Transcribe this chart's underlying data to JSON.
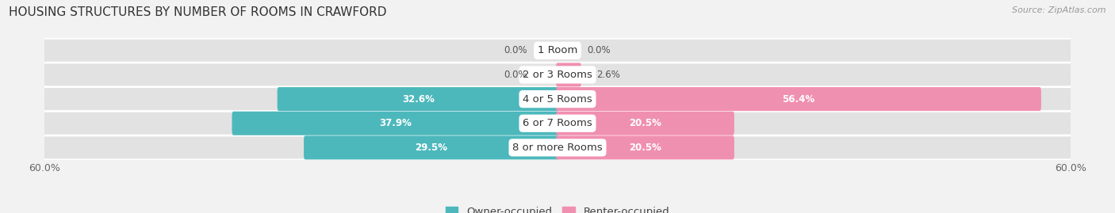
{
  "title": "HOUSING STRUCTURES BY NUMBER OF ROOMS IN CRAWFORD",
  "source": "Source: ZipAtlas.com",
  "categories": [
    "1 Room",
    "2 or 3 Rooms",
    "4 or 5 Rooms",
    "6 or 7 Rooms",
    "8 or more Rooms"
  ],
  "owner_values": [
    0.0,
    0.0,
    32.6,
    37.9,
    29.5
  ],
  "renter_values": [
    0.0,
    2.6,
    56.4,
    20.5,
    20.5
  ],
  "owner_color": "#4db8bc",
  "renter_color": "#f090b0",
  "bg_color": "#f2f2f2",
  "row_bg_color": "#e2e2e2",
  "axis_limit": 60.0,
  "title_fontsize": 11,
  "tick_fontsize": 9,
  "legend_fontsize": 9.5,
  "category_fontsize": 9.5,
  "value_fontsize": 8.5
}
